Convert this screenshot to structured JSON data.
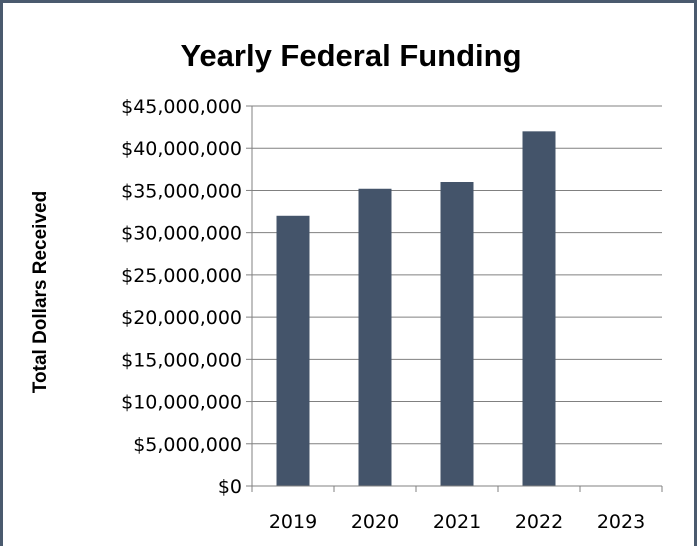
{
  "chart_data": {
    "type": "bar",
    "title": "Yearly Federal Funding",
    "xlabel": "",
    "ylabel": "Total Dollars Received",
    "categories": [
      "2019",
      "2020",
      "2021",
      "2022",
      "2023"
    ],
    "values": [
      32000000,
      35200000,
      36000000,
      42000000,
      null
    ],
    "ylim": [
      0,
      45000000
    ],
    "yticks": [
      0,
      5000000,
      10000000,
      15000000,
      20000000,
      25000000,
      30000000,
      35000000,
      40000000,
      45000000
    ],
    "ytick_labels": [
      "$0",
      "$5,000,000",
      "$10,000,000",
      "$15,000,000",
      "$20,000,000",
      "$25,000,000",
      "$30,000,000",
      "$35,000,000",
      "$40,000,000",
      "$45,000,000"
    ],
    "grid": true,
    "legend": "none",
    "colors": {
      "bar": "#44546a",
      "grid": "#808080",
      "axis": "#808080",
      "frame": "#4a5a6e"
    }
  }
}
